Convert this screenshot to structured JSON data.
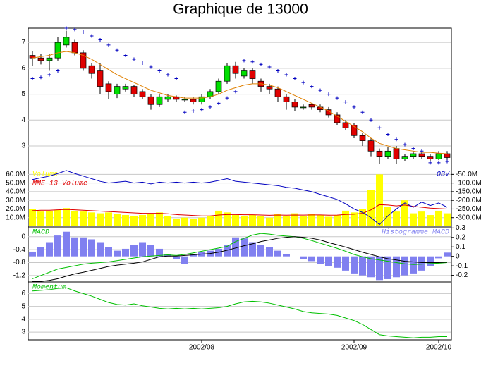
{
  "chart_data": [
    {
      "type": "candlestick",
      "title": "Graphique de 13000",
      "open": [
        6.5,
        6.4,
        6.3,
        6.4,
        6.9,
        7.0,
        6.6,
        6.1,
        5.9,
        5.4,
        5.0,
        5.2,
        5.3,
        5.1,
        4.9,
        4.6,
        4.8,
        4.9,
        4.8,
        4.8,
        4.7,
        4.9,
        5.1,
        5.5,
        6.1,
        5.7,
        5.9,
        5.5,
        5.3,
        5.2,
        4.9,
        4.7,
        4.5,
        4.6,
        4.5,
        4.4,
        4.2,
        3.9,
        3.8,
        3.4,
        3.2,
        2.8,
        2.6,
        2.9,
        2.5,
        2.6,
        2.7,
        2.6,
        2.5,
        2.7
      ],
      "high": [
        6.65,
        6.55,
        6.55,
        7.2,
        7.45,
        7.1,
        6.7,
        6.2,
        6.2,
        5.5,
        5.4,
        5.4,
        5.35,
        5.2,
        5.0,
        5.0,
        5.0,
        4.95,
        4.9,
        4.9,
        5.0,
        5.2,
        5.6,
        6.2,
        6.25,
        6.0,
        6.0,
        5.6,
        5.4,
        5.3,
        5.0,
        4.8,
        4.6,
        4.65,
        4.6,
        4.5,
        4.3,
        4.0,
        3.9,
        3.5,
        3.3,
        2.9,
        2.95,
        3.0,
        2.7,
        2.8,
        2.8,
        2.7,
        2.8,
        2.8
      ],
      "low": [
        6.1,
        6.15,
        5.9,
        6.3,
        6.8,
        6.5,
        5.9,
        5.6,
        5.0,
        4.8,
        4.85,
        5.1,
        4.9,
        4.8,
        4.4,
        4.5,
        4.7,
        4.7,
        4.7,
        4.6,
        4.6,
        4.8,
        5.0,
        5.4,
        5.6,
        5.6,
        5.4,
        5.1,
        5.0,
        4.7,
        4.4,
        4.35,
        4.4,
        4.4,
        4.3,
        4.1,
        3.8,
        3.6,
        3.3,
        3.0,
        2.6,
        2.3,
        2.5,
        2.3,
        2.4,
        2.5,
        2.5,
        2.4,
        2.45,
        2.45
      ],
      "close": [
        6.4,
        6.3,
        6.4,
        7.0,
        7.2,
        6.6,
        6.0,
        5.8,
        5.3,
        5.1,
        5.3,
        5.3,
        5.0,
        4.9,
        4.6,
        4.9,
        4.9,
        4.8,
        4.8,
        4.7,
        4.9,
        5.1,
        5.5,
        6.1,
        5.8,
        5.9,
        5.6,
        5.3,
        5.2,
        4.9,
        4.7,
        4.5,
        4.5,
        4.5,
        4.4,
        4.2,
        3.9,
        3.7,
        3.4,
        3.2,
        2.8,
        2.6,
        2.8,
        2.5,
        2.6,
        2.7,
        2.6,
        2.5,
        2.7,
        2.55
      ],
      "up_color": "#00e000",
      "down_color": "#e00000",
      "overlays": [
        {
          "style": "line",
          "color": "#e08000",
          "values": [
            6.4,
            6.45,
            6.5,
            6.6,
            6.65,
            6.6,
            6.5,
            6.35,
            6.15,
            5.95,
            5.75,
            5.6,
            5.45,
            5.3,
            5.15,
            5.05,
            4.95,
            4.9,
            4.85,
            4.85,
            4.85,
            4.9,
            5.0,
            5.15,
            5.25,
            5.35,
            5.4,
            5.4,
            5.35,
            5.25,
            5.1,
            4.95,
            4.8,
            4.65,
            4.5,
            4.35,
            4.15,
            3.95,
            3.75,
            3.55,
            3.3,
            3.1,
            3.0,
            2.9,
            2.85,
            2.8,
            2.75,
            2.75,
            2.72,
            2.7
          ]
        },
        {
          "style": "cross",
          "color": "#0000c0",
          "values": [
            5.6,
            5.65,
            5.75,
            5.9,
            7.55,
            7.5,
            7.4,
            7.25,
            7.1,
            6.9,
            6.7,
            6.5,
            6.35,
            6.2,
            6.05,
            5.9,
            5.75,
            5.6,
            4.3,
            4.35,
            4.4,
            4.5,
            4.65,
            4.85,
            5.1,
            6.3,
            6.25,
            6.15,
            6.05,
            5.9,
            5.75,
            5.6,
            5.45,
            5.3,
            5.15,
            5.0,
            4.85,
            4.7,
            4.5,
            4.3,
            4.0,
            3.7,
            3.45,
            3.25,
            3.05,
            2.9,
            2.8,
            2.35,
            2.35,
            2.4
          ]
        }
      ],
      "ylim": [
        2.1,
        7.55
      ],
      "yticks": [
        3,
        4,
        5,
        6,
        7
      ],
      "grid": true
    },
    {
      "type": "bar",
      "series": [
        {
          "name": "Volume",
          "style": "bar",
          "color": "#ffff00",
          "values": [
            20,
            17,
            18,
            19,
            21,
            18,
            17,
            16,
            15,
            16,
            14,
            13,
            12,
            13,
            14,
            16,
            12,
            9,
            10,
            9,
            10,
            12,
            18,
            16,
            13,
            12,
            13,
            12,
            10,
            14,
            12,
            15,
            12,
            14,
            13,
            11,
            13,
            18,
            16,
            20,
            42,
            60,
            22,
            17,
            30,
            15,
            17,
            13,
            18,
            15
          ]
        },
        {
          "name": "MME 13 Volume",
          "style": "line",
          "color": "#e00000",
          "values": [
            18,
            18.5,
            18.5,
            19,
            19.5,
            19,
            18.5,
            18,
            17.5,
            17,
            16.5,
            16,
            15.5,
            15,
            15,
            15,
            14.5,
            13.5,
            13,
            12.5,
            12,
            12,
            13,
            13.5,
            13.5,
            13.3,
            13.3,
            13,
            12.7,
            13,
            12.8,
            13,
            12.9,
            13.1,
            13.1,
            12.8,
            12.9,
            13.6,
            14,
            15,
            19,
            25,
            24.5,
            23.5,
            24.5,
            23,
            22,
            21,
            20.5,
            20
          ]
        },
        {
          "name": "OBV",
          "style": "line",
          "color": "#0000c0",
          "axis": "y2",
          "values": [
            -80,
            -70,
            -60,
            -45,
            -28,
            -45,
            -60,
            -75,
            -90,
            -100,
            -95,
            -90,
            -100,
            -95,
            -105,
            -95,
            -100,
            -95,
            -100,
            -95,
            -100,
            -95,
            -85,
            -75,
            -90,
            -95,
            -100,
            -105,
            -110,
            -115,
            -125,
            -130,
            -140,
            -150,
            -165,
            -180,
            -195,
            -220,
            -250,
            -270,
            -300,
            -340,
            -290,
            -250,
            -215,
            -240,
            -210,
            -230,
            -215,
            -240
          ]
        }
      ],
      "ylim": [
        0,
        66
      ],
      "yticks": [
        {
          "value": 10,
          "label": "10.0M"
        },
        {
          "value": 20,
          "label": "20.0M"
        },
        {
          "value": 30,
          "label": "30.0M"
        },
        {
          "value": 40,
          "label": "40.0M"
        },
        {
          "value": 50,
          "label": "50.0M"
        },
        {
          "value": 60,
          "label": "60.0M"
        }
      ],
      "y2lim": [
        -350,
        -20
      ],
      "y2ticks": [
        {
          "value": -50,
          "label": "-50.0M"
        },
        {
          "value": -100,
          "label": "-100.0M"
        },
        {
          "value": -150,
          "label": "-150.0M"
        },
        {
          "value": -200,
          "label": "-200.0M"
        },
        {
          "value": -250,
          "label": "-250.0M"
        },
        {
          "value": -300,
          "label": "-300.0M"
        }
      ],
      "grid": true
    },
    {
      "type": "line",
      "series": [
        {
          "name": "MACD",
          "style": "line",
          "color": "#00c000",
          "values": [
            -1.3,
            -1.2,
            -1.1,
            -1.0,
            -0.95,
            -0.9,
            -0.85,
            -0.82,
            -0.8,
            -0.78,
            -0.74,
            -0.7,
            -0.66,
            -0.62,
            -0.6,
            -0.58,
            -0.56,
            -0.58,
            -0.55,
            -0.5,
            -0.45,
            -0.4,
            -0.35,
            -0.3,
            -0.15,
            -0.05,
            0.05,
            0.1,
            0.08,
            0.04,
            0.02,
            0,
            -0.05,
            -0.12,
            -0.2,
            -0.28,
            -0.36,
            -0.45,
            -0.55,
            -0.62,
            -0.68,
            -0.72,
            -0.76,
            -0.8,
            -0.84,
            -0.86,
            -0.85,
            -0.83,
            -0.82,
            -0.8
          ]
        },
        {
          "style": "line",
          "color": "#000000",
          "values": [
            -1.38,
            -1.38,
            -1.35,
            -1.3,
            -1.22,
            -1.15,
            -1.1,
            -1.04,
            -0.98,
            -0.92,
            -0.88,
            -0.85,
            -0.82,
            -0.78,
            -0.7,
            -0.62,
            -0.6,
            -0.6,
            -0.58,
            -0.56,
            -0.54,
            -0.52,
            -0.48,
            -0.42,
            -0.35,
            -0.28,
            -0.22,
            -0.15,
            -0.1,
            -0.05,
            -0.02,
            0,
            -0.02,
            -0.05,
            -0.1,
            -0.18,
            -0.25,
            -0.32,
            -0.4,
            -0.48,
            -0.55,
            -0.62,
            -0.68,
            -0.72,
            -0.76,
            -0.78,
            -0.8,
            -0.8,
            -0.8,
            -0.79
          ]
        },
        {
          "name": "Histogramme MACD",
          "style": "bar",
          "color": "#8080f0",
          "axis": "y2",
          "values": [
            0.05,
            0.1,
            0.15,
            0.22,
            0.26,
            0.2,
            0.2,
            0.18,
            0.15,
            0.1,
            0.06,
            0.08,
            0.12,
            0.15,
            0.12,
            0.08,
            0.02,
            -0.03,
            -0.08,
            0.02,
            0.05,
            0.06,
            0.08,
            0.12,
            0.2,
            0.19,
            0.15,
            0.12,
            0.1,
            0.06,
            0.02,
            0,
            -0.03,
            -0.05,
            -0.08,
            -0.1,
            -0.12,
            -0.15,
            -0.18,
            -0.2,
            -0.22,
            -0.25,
            -0.24,
            -0.22,
            -0.2,
            -0.18,
            -0.15,
            -0.1,
            -0.02,
            0.04
          ]
        }
      ],
      "ylim": [
        -1.4,
        0.3
      ],
      "yticks": [
        -1.2,
        -0.8,
        -0.4,
        0
      ],
      "y2lim": [
        -0.27,
        0.31
      ],
      "y2ticks": [
        -0.2,
        -0.1,
        0,
        0.1,
        0.2,
        0.3
      ],
      "grid": true
    },
    {
      "type": "line",
      "categories": [
        null,
        null,
        null,
        null,
        null,
        null,
        null,
        null,
        null,
        null,
        null,
        null,
        null,
        null,
        null,
        null,
        null,
        null,
        null,
        null,
        "2002/08",
        null,
        null,
        null,
        null,
        null,
        null,
        null,
        null,
        null,
        null,
        null,
        null,
        null,
        null,
        null,
        null,
        null,
        "2002/09",
        null,
        null,
        null,
        null,
        null,
        null,
        null,
        null,
        null,
        "2002/10",
        null
      ],
      "series": [
        {
          "name": "Momentum",
          "style": "line",
          "color": "#00c000",
          "values": [
            6.2,
            6.25,
            6.3,
            6.4,
            6.45,
            6.2,
            6.0,
            5.8,
            5.55,
            5.3,
            5.15,
            5.1,
            5.2,
            5.05,
            4.95,
            4.85,
            4.8,
            4.85,
            4.8,
            4.85,
            4.8,
            4.85,
            4.9,
            5.0,
            5.2,
            5.35,
            5.4,
            5.35,
            5.25,
            5.1,
            4.95,
            4.8,
            4.6,
            4.5,
            4.45,
            4.4,
            4.3,
            4.1,
            3.9,
            3.6,
            3.2,
            2.8,
            2.7,
            2.65,
            2.6,
            2.55,
            2.6,
            2.6,
            2.65,
            2.65
          ]
        }
      ],
      "ylim": [
        2.4,
        6.9
      ],
      "yticks": [
        3,
        4,
        5,
        6
      ],
      "grid": true
    }
  ]
}
